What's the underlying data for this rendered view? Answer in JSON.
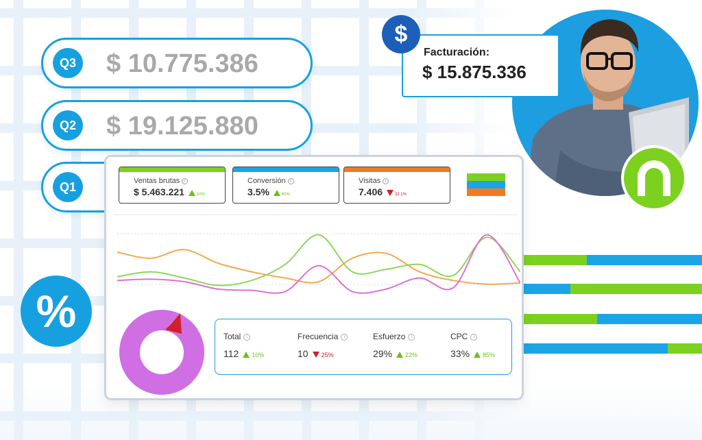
{
  "colors": {
    "primary_blue": "#17a0e0",
    "dark_blue": "#1d5fb8",
    "green": "#7cd11e",
    "orange": "#f07a24",
    "pink": "#e070d0",
    "donut_purple": "#cf6fe3",
    "red": "#cc2027"
  },
  "quarters": [
    {
      "label": "Q3",
      "value": "$ 10.775.386"
    },
    {
      "label": "Q2",
      "value": "$ 19.125.880"
    },
    {
      "label": "Q1",
      "value": ""
    }
  ],
  "billing": {
    "label": "Facturación:",
    "value": "$ 15.875.336",
    "icon": "dollar-icon"
  },
  "percent_icon": "percent-icon",
  "dashboard": {
    "kpis": [
      {
        "label": "Ventas brutas",
        "value": "$ 5.463.221",
        "delta": "10%",
        "direction": "up",
        "color": "#7cd11e"
      },
      {
        "label": "Conversión",
        "value": "3.5%",
        "delta": "60%",
        "direction": "up",
        "color": "#1ba5e6"
      },
      {
        "label": "Visitas",
        "value": "7.406",
        "delta": "32.1%",
        "direction": "down",
        "color": "#f07a24"
      }
    ],
    "legend_colors": [
      "#7cd11e",
      "#1ba5e6",
      "#f07a24"
    ],
    "stats": [
      {
        "label": "Total",
        "value": "112",
        "delta": "10%",
        "direction": "up"
      },
      {
        "label": "Frecuencia",
        "value": "10",
        "delta": "25%",
        "direction": "down"
      },
      {
        "label": "Esfuerzo",
        "value": "29%",
        "delta": "22%",
        "direction": "up"
      },
      {
        "label": "CPC",
        "value": "33%",
        "delta": "85%",
        "direction": "up"
      }
    ],
    "donut_fraction": 1.0
  },
  "chart_data": {
    "type": "line",
    "title": "",
    "xlabel": "",
    "ylabel": "",
    "x": [
      0,
      1,
      2,
      3,
      4,
      5,
      6,
      7,
      8,
      9,
      10,
      11,
      12
    ],
    "ylim": [
      0,
      100
    ],
    "series": [
      {
        "name": "orange",
        "color": "#f5a84a",
        "values": [
          68,
          58,
          72,
          50,
          36,
          26,
          20,
          58,
          66,
          36,
          22,
          16,
          18
        ]
      },
      {
        "name": "green",
        "color": "#8ed65a",
        "values": [
          28,
          36,
          26,
          14,
          22,
          48,
          96,
          36,
          40,
          48,
          30,
          92,
          36
        ]
      },
      {
        "name": "pink",
        "color": "#e070d0",
        "values": [
          22,
          24,
          20,
          8,
          6,
          4,
          46,
          4,
          8,
          26,
          10,
          96,
          18
        ]
      }
    ]
  },
  "right_bars": [
    {
      "segments": [
        {
          "color": "#7cd11e",
          "fraction": 0.35
        },
        {
          "color": "#1ba5e6",
          "fraction": 0.65
        }
      ]
    },
    {
      "segments": [
        {
          "color": "#1ba5e6",
          "fraction": 0.26
        },
        {
          "color": "#7cd11e",
          "fraction": 0.74
        }
      ]
    },
    {
      "segments": [
        {
          "color": "#7cd11e",
          "fraction": 0.41
        },
        {
          "color": "#1ba5e6",
          "fraction": 0.59
        }
      ]
    },
    {
      "segments": [
        {
          "color": "#1ba5e6",
          "fraction": 0.8
        },
        {
          "color": "#7cd11e",
          "fraction": 0.2
        }
      ]
    }
  ]
}
